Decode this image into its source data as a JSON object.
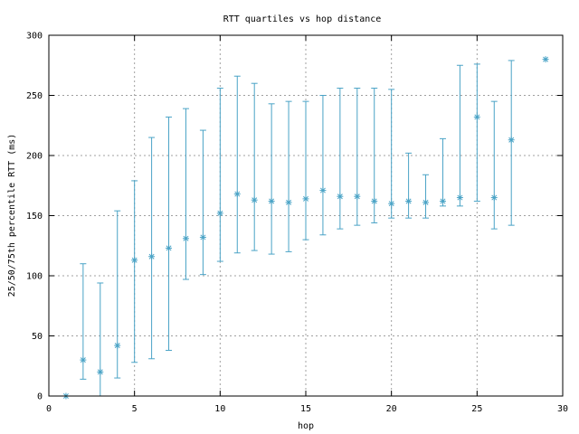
{
  "chart_data": {
    "type": "scatter",
    "title": "RTT quartiles vs hop distance",
    "xlabel": "hop",
    "ylabel": "25/50/75th percentile RTT (ms)",
    "xlim": [
      0,
      30
    ],
    "ylim": [
      0,
      300
    ],
    "xticks": [
      0,
      5,
      10,
      15,
      20,
      25,
      30
    ],
    "yticks": [
      0,
      50,
      100,
      150,
      200,
      250,
      300
    ],
    "grid": true,
    "color": "#4aa3c6",
    "points": [
      {
        "hop": 1,
        "p25": 0,
        "median": 0,
        "p75": 0
      },
      {
        "hop": 2,
        "p25": 14,
        "median": 30,
        "p75": 110
      },
      {
        "hop": 3,
        "p25": 0,
        "median": 20,
        "p75": 94
      },
      {
        "hop": 4,
        "p25": 15,
        "median": 42,
        "p75": 154
      },
      {
        "hop": 5,
        "p25": 28,
        "median": 113,
        "p75": 179
      },
      {
        "hop": 6,
        "p25": 31,
        "median": 116,
        "p75": 215
      },
      {
        "hop": 7,
        "p25": 38,
        "median": 123,
        "p75": 232
      },
      {
        "hop": 8,
        "p25": 97,
        "median": 131,
        "p75": 239
      },
      {
        "hop": 9,
        "p25": 101,
        "median": 132,
        "p75": 221
      },
      {
        "hop": 10,
        "p25": 112,
        "median": 152,
        "p75": 256
      },
      {
        "hop": 11,
        "p25": 119,
        "median": 168,
        "p75": 266
      },
      {
        "hop": 12,
        "p25": 121,
        "median": 163,
        "p75": 260
      },
      {
        "hop": 13,
        "p25": 118,
        "median": 162,
        "p75": 243
      },
      {
        "hop": 14,
        "p25": 120,
        "median": 161,
        "p75": 245
      },
      {
        "hop": 15,
        "p25": 130,
        "median": 164,
        "p75": 245
      },
      {
        "hop": 16,
        "p25": 134,
        "median": 171,
        "p75": 250
      },
      {
        "hop": 17,
        "p25": 139,
        "median": 166,
        "p75": 256
      },
      {
        "hop": 18,
        "p25": 142,
        "median": 166,
        "p75": 256
      },
      {
        "hop": 19,
        "p25": 144,
        "median": 162,
        "p75": 256
      },
      {
        "hop": 20,
        "p25": 148,
        "median": 160,
        "p75": 255
      },
      {
        "hop": 21,
        "p25": 148,
        "median": 162,
        "p75": 202
      },
      {
        "hop": 22,
        "p25": 148,
        "median": 161,
        "p75": 184
      },
      {
        "hop": 23,
        "p25": 158,
        "median": 162,
        "p75": 214
      },
      {
        "hop": 24,
        "p25": 158,
        "median": 165,
        "p75": 275
      },
      {
        "hop": 25,
        "p25": 162,
        "median": 232,
        "p75": 276
      },
      {
        "hop": 26,
        "p25": 139,
        "median": 165,
        "p75": 245
      },
      {
        "hop": 27,
        "p25": 142,
        "median": 213,
        "p75": 279
      },
      {
        "hop": 29,
        "p25": 280,
        "median": 280,
        "p75": 280
      }
    ]
  }
}
